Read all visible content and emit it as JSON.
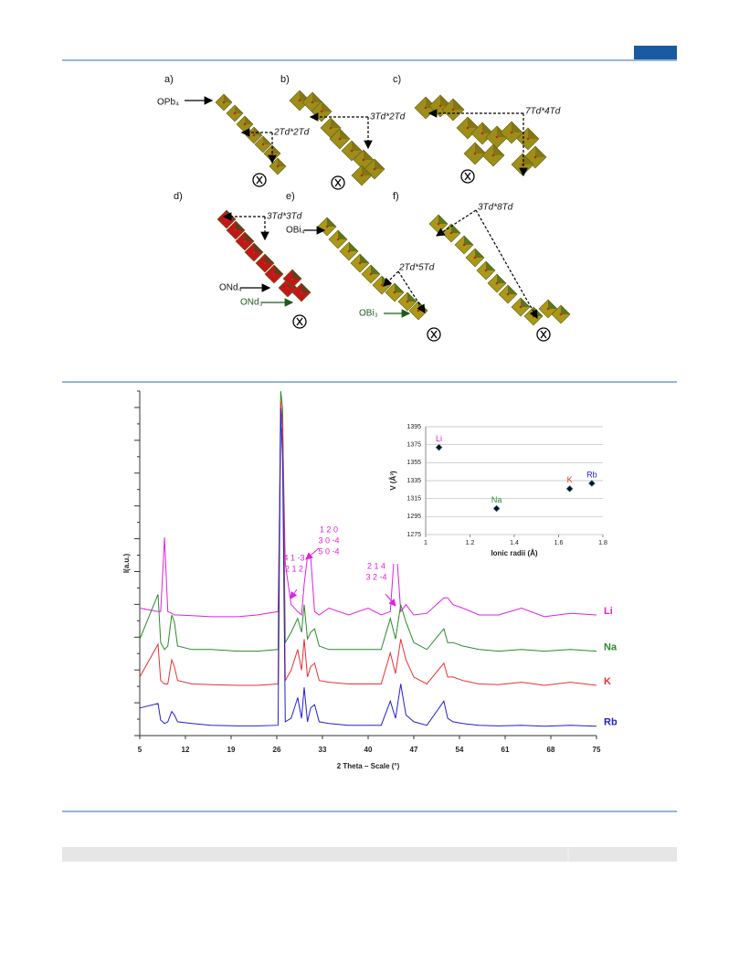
{
  "figure1": {
    "panels": [
      {
        "label": "a)",
        "notes": [
          "OPb₄",
          "2Td*2Td"
        ]
      },
      {
        "label": "b)",
        "notes": [
          "3Td*2Td"
        ]
      },
      {
        "label": "c)",
        "notes": [
          "7Td*4Td"
        ]
      },
      {
        "label": "d)",
        "notes": [
          "3Td*3Td",
          "ONd₄",
          "ONd₃"
        ]
      },
      {
        "label": "e)",
        "notes": [
          "OBi₄",
          "2Td*5Td",
          "OBi₃"
        ]
      },
      {
        "label": "f)",
        "notes": [
          "3Td*8Td"
        ]
      }
    ]
  },
  "chart_data": [
    {
      "type": "line",
      "x_label": "2 Theta – Scale (°)",
      "y_label": "I(a.u.)",
      "x": [
        5,
        7.8,
        8.2,
        8.8,
        9.3,
        9.9,
        10.3,
        10.8,
        13,
        16,
        20,
        23,
        26.2,
        26.6,
        26.9,
        27.3,
        28.2,
        29.2,
        29.8,
        30.2,
        30.7,
        31.2,
        31.8,
        32.5,
        34,
        37,
        40,
        42,
        43.4,
        44.2,
        45,
        45.8,
        47,
        49,
        51.6,
        52.2,
        53,
        54.5,
        57,
        60,
        63.5,
        67,
        71,
        75
      ],
      "series": [
        {
          "name": "Li",
          "color": "#e020e0",
          "values": [
            37,
            36,
            36,
            57.5,
            36,
            35.5,
            35,
            35,
            34.8,
            34.5,
            34.5,
            35,
            36,
            88,
            89,
            50,
            38,
            36,
            35,
            44,
            52,
            52,
            36,
            35,
            37,
            35,
            37,
            35,
            36,
            58,
            36,
            38,
            35,
            35.5,
            40,
            40,
            38,
            37,
            35,
            35,
            37,
            34.5,
            35.5,
            35
          ]
        },
        {
          "name": "Na",
          "color": "#2a8a2a",
          "values": [
            28,
            41,
            27,
            25,
            26,
            35,
            33,
            26,
            25,
            25,
            24.5,
            24.5,
            25,
            100,
            95,
            27,
            30,
            34,
            30,
            38,
            28,
            30,
            31,
            26,
            25,
            25,
            25,
            25,
            34,
            28,
            38,
            33,
            27,
            25,
            31,
            27,
            27,
            26,
            25,
            24.5,
            25,
            24.5,
            25,
            24.5
          ]
        },
        {
          "name": "K",
          "color": "#e83030",
          "values": [
            17,
            26.5,
            16,
            15,
            15,
            22,
            20,
            16,
            15,
            14.8,
            14.6,
            14.6,
            15,
            97,
            90,
            16,
            19,
            25,
            19,
            28,
            17,
            20,
            21,
            16,
            15.5,
            15,
            15,
            15,
            24,
            18,
            28,
            22,
            17,
            15,
            21,
            17,
            17,
            16,
            15,
            14.8,
            15.5,
            14.6,
            15.5,
            14.6
          ]
        },
        {
          "name": "Rb",
          "color": "#2020d0",
          "values": [
            8,
            9.3,
            4.5,
            3.5,
            4,
            7,
            6,
            4,
            3.5,
            3,
            2.8,
            2.8,
            3,
            95,
            80,
            4,
            5,
            11,
            5,
            14,
            4,
            8,
            9,
            4,
            3.5,
            3,
            3,
            3,
            10,
            5,
            15,
            6,
            4,
            3,
            10,
            5,
            4,
            3.5,
            3,
            2.8,
            3,
            2.7,
            3,
            2.7
          ]
        }
      ],
      "xlim": [
        5,
        75
      ],
      "xticks": [
        5,
        12,
        19,
        26,
        33,
        40,
        47,
        54,
        61,
        68,
        75
      ],
      "ylim": [
        0,
        100
      ],
      "annotations": [
        "1 2 0",
        "3 0 -4",
        "5 0 -4",
        "4 1 -3",
        "2 1 2",
        "2 1 4",
        "3 2 -4"
      ],
      "annotation_color": "#e020e0"
    },
    {
      "type": "scatter",
      "x_label": "Ionic radii (Å)",
      "y_label": "V (Å³)",
      "series": [
        {
          "name": "Li",
          "color": "#e020e0",
          "x": [
            1.06
          ],
          "values": [
            1372
          ]
        },
        {
          "name": "Na",
          "color": "#2a8a2a",
          "x": [
            1.32
          ],
          "values": [
            1304
          ]
        },
        {
          "name": "K",
          "color": "#e83030",
          "x": [
            1.65
          ],
          "values": [
            1326
          ]
        },
        {
          "name": "Rb",
          "color": "#2020d0",
          "x": [
            1.75
          ],
          "values": [
            1332
          ]
        }
      ],
      "xlim": [
        1,
        1.8
      ],
      "xticks": [
        1,
        1.2,
        1.4,
        1.6,
        1.8
      ],
      "ylim": [
        1275,
        1395
      ],
      "yticks": [
        1275,
        1295,
        1315,
        1335,
        1355,
        1375,
        1395
      ],
      "grid": true
    }
  ]
}
